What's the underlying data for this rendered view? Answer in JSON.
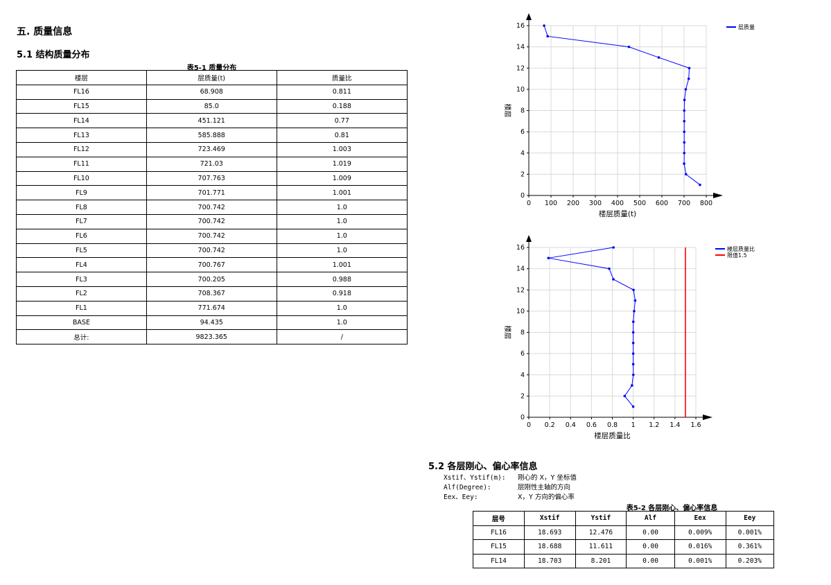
{
  "section_title": "五. 质量信息",
  "subsection_title": "5.1 结构质量分布",
  "table1": {
    "caption": "表5-1 质量分布",
    "headers": [
      "楼层",
      "层质量(t)",
      "质量比"
    ],
    "rows": [
      [
        "FL16",
        "68.908",
        "0.811"
      ],
      [
        "FL15",
        "85.0",
        "0.188"
      ],
      [
        "FL14",
        "451.121",
        "0.77"
      ],
      [
        "FL13",
        "585.888",
        "0.81"
      ],
      [
        "FL12",
        "723.469",
        "1.003"
      ],
      [
        "FL11",
        "721.03",
        "1.019"
      ],
      [
        "FL10",
        "707.763",
        "1.009"
      ],
      [
        "FL9",
        "701.771",
        "1.001"
      ],
      [
        "FL8",
        "700.742",
        "1.0"
      ],
      [
        "FL7",
        "700.742",
        "1.0"
      ],
      [
        "FL6",
        "700.742",
        "1.0"
      ],
      [
        "FL5",
        "700.742",
        "1.0"
      ],
      [
        "FL4",
        "700.767",
        "1.001"
      ],
      [
        "FL3",
        "700.205",
        "0.988"
      ],
      [
        "FL2",
        "708.367",
        "0.918"
      ],
      [
        "FL1",
        "771.674",
        "1.0"
      ],
      [
        "BASE",
        "94.435",
        "1.0"
      ],
      [
        "总计:",
        "9823.365",
        "/"
      ]
    ]
  },
  "chart_data": [
    {
      "type": "line",
      "xlabel": "楼层质量(t)",
      "ylabel": "楼层",
      "xlim": [
        0,
        800
      ],
      "ylim": [
        0,
        16
      ],
      "xticks": [
        0,
        100,
        200,
        300,
        400,
        500,
        600,
        700,
        800
      ],
      "yticks": [
        0,
        2,
        4,
        6,
        8,
        10,
        12,
        14,
        16
      ],
      "legend": "top-right",
      "series": [
        {
          "name": "层质量",
          "color": "#0000ff",
          "x": [
            771.674,
            708.367,
            700.205,
            700.767,
            700.742,
            700.742,
            700.742,
            700.742,
            701.771,
            707.763,
            721.03,
            723.469,
            585.888,
            451.121,
            85.0,
            68.908
          ],
          "y": [
            1,
            2,
            3,
            4,
            5,
            6,
            7,
            8,
            9,
            10,
            11,
            12,
            13,
            14,
            15,
            16
          ]
        }
      ]
    },
    {
      "type": "line",
      "xlabel": "楼层质量比",
      "ylabel": "楼层",
      "xlim": [
        0,
        1.6
      ],
      "ylim": [
        0,
        16
      ],
      "xticks": [
        0,
        0.2,
        0.4,
        0.6,
        0.8,
        1,
        1.2,
        1.4,
        1.6
      ],
      "yticks": [
        0,
        2,
        4,
        6,
        8,
        10,
        12,
        14,
        16
      ],
      "legend": "top-right",
      "series": [
        {
          "name": "楼层质量比",
          "color": "#0000ff",
          "x": [
            1.0,
            0.918,
            0.988,
            1.001,
            1.0,
            1.0,
            1.0,
            1.0,
            1.001,
            1.009,
            1.019,
            1.003,
            0.81,
            0.77,
            0.188,
            0.811
          ],
          "y": [
            1,
            2,
            3,
            4,
            5,
            6,
            7,
            8,
            9,
            10,
            11,
            12,
            13,
            14,
            15,
            16
          ]
        },
        {
          "name": "限值1.5",
          "color": "#ff0000",
          "x": [
            1.5,
            1.5
          ],
          "y": [
            0,
            16
          ]
        }
      ]
    }
  ],
  "section52": {
    "title": "5.2 各层刚心、偏心率信息",
    "defs": [
      {
        "key": "Xstif、Ystif(m):",
        "desc": "刚心的 X，Y 坐标值"
      },
      {
        "key": "Alf(Degree):",
        "desc": "层刚性主轴的方向"
      },
      {
        "key": "Eex、Eey:",
        "desc": "X，Y 方向的偏心率"
      }
    ],
    "caption": "表5-2 各层刚心、偏心率信息",
    "headers": [
      "层号",
      "Xstif",
      "Ystif",
      "Alf",
      "Eex",
      "Eey"
    ],
    "rows": [
      [
        "FL16",
        "18.693",
        "12.476",
        "0.00",
        "0.009%",
        "0.001%"
      ],
      [
        "FL15",
        "18.688",
        "11.611",
        "0.00",
        "0.016%",
        "0.361%"
      ],
      [
        "FL14",
        "18.703",
        "8.201",
        "0.00",
        "0.001%",
        "0.203%"
      ]
    ]
  }
}
